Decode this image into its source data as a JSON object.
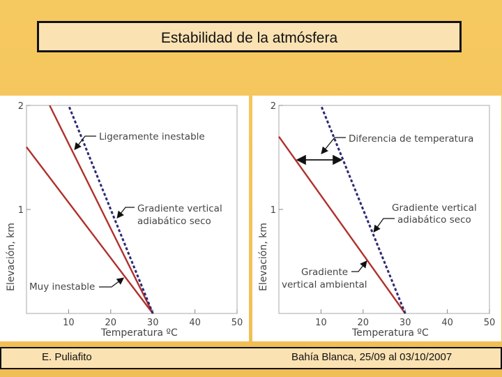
{
  "title": "Estabilidad de la atmósfera",
  "footer": {
    "author": "E. Puliafito",
    "event": "Bahía Blanca, 25/09 al 03/10/2007"
  },
  "colors": {
    "environment_line": "#b0302c",
    "adiabatic_line": "#2a2a72",
    "background": "#f3c35a",
    "title_box": "#fbe2b2"
  },
  "chart_data": [
    {
      "type": "line",
      "xlabel": "Temperatura ºC",
      "ylabel": "Elevación, km",
      "x_ticks": [
        "10",
        "20",
        "30",
        "40",
        "50"
      ],
      "y_ticks": [
        "1",
        "2"
      ],
      "xlim": [
        0,
        50
      ],
      "ylim": [
        0,
        2
      ],
      "series": [
        {
          "key": "slightly_unstable",
          "style": "solid",
          "x": [
            30,
            5.5
          ],
          "y": [
            0,
            2
          ]
        },
        {
          "key": "very_unstable",
          "style": "solid",
          "x": [
            30,
            0
          ],
          "y": [
            0,
            1.6
          ]
        },
        {
          "key": "dry_adiabatic",
          "style": "dotted",
          "x": [
            30,
            10
          ],
          "y": [
            0,
            2
          ]
        }
      ],
      "annotations": [
        {
          "lines": [
            "Ligeramente inestable"
          ]
        },
        {
          "lines": [
            "Gradiente vertical",
            "adiabático seco"
          ]
        },
        {
          "lines": [
            "Muy inestable"
          ]
        }
      ]
    },
    {
      "type": "line",
      "xlabel": "Temperatura ºC",
      "ylabel": "Elevación, km",
      "x_ticks": [
        "10",
        "20",
        "30",
        "40",
        "50"
      ],
      "y_ticks": [
        "1",
        "2"
      ],
      "xlim": [
        0,
        50
      ],
      "ylim": [
        0,
        2
      ],
      "series": [
        {
          "key": "environmental_gradient",
          "style": "solid",
          "x": [
            30,
            0
          ],
          "y": [
            0,
            1.7
          ]
        },
        {
          "key": "dry_adiabatic",
          "style": "dotted",
          "x": [
            30,
            10
          ],
          "y": [
            0,
            2
          ]
        }
      ],
      "annotations": [
        {
          "lines": [
            "Diferencia de temperatura"
          ]
        },
        {
          "lines": [
            "Gradiente vertical",
            "adiabático seco"
          ]
        },
        {
          "lines": [
            "Gradiente",
            "vertical ambiental"
          ]
        }
      ]
    }
  ]
}
